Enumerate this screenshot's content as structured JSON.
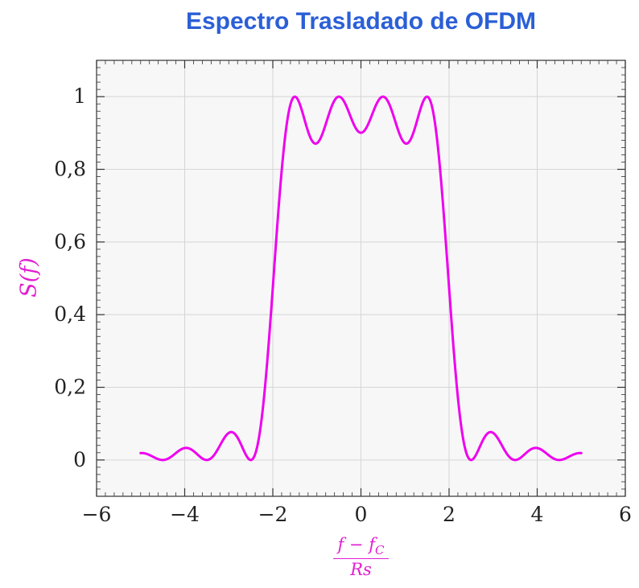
{
  "title": "Espectro Trasladado de OFDM",
  "chart_data": {
    "type": "line",
    "title": "Espectro Trasladado de OFDM",
    "xlabel": "(f − f_C) / Rs",
    "xlabel_parts": {
      "num_main": "f − f",
      "num_sub": "C",
      "den": "Rs"
    },
    "ylabel": "S(f)",
    "xlim": [
      -6,
      6
    ],
    "ylim": [
      -0.1,
      1.1
    ],
    "x_ticks": [
      -6,
      -4,
      -2,
      0,
      2,
      4,
      6
    ],
    "x_tick_labels": [
      "−6",
      "−4",
      "−2",
      "0",
      "2",
      "4",
      "6"
    ],
    "y_ticks": [
      0,
      0.2,
      0.4,
      0.6,
      0.8,
      1
    ],
    "y_tick_labels": [
      "0",
      "0,2",
      "0,4",
      "0,6",
      "0,8",
      "1"
    ],
    "x_minor_step": 0.2,
    "y_minor_step": 0.02,
    "x_major_step": 2,
    "y_major_step": 0.2,
    "grid": true,
    "legend": "none",
    "series": [
      {
        "name": "S(f)",
        "color": "#EE00EE",
        "model": "sum_of_squared_sincs",
        "formula": "S(f) = sum_k sinc^2(f − f_k) over subcarriers f_k",
        "subcarriers": [
          -1.5,
          -0.5,
          0.5,
          1.5
        ],
        "x_range": [
          -5,
          5
        ],
        "samples": 801,
        "key_points": {
          "peaks": [
            [
              -1.5,
              1.0
            ],
            [
              -0.5,
              1.0
            ],
            [
              0.5,
              1.0
            ],
            [
              1.5,
              1.0
            ]
          ],
          "inband_dips": [
            [
              -1,
              0.872
            ],
            [
              0,
              0.901
            ],
            [
              1,
              0.872
            ]
          ],
          "nulls": [
            -4.5,
            -3.5,
            -2.5,
            2.5,
            3.5,
            4.5
          ],
          "sidelobe_peaks": [
            [
              -3,
              0.075
            ],
            [
              3,
              0.075
            ],
            [
              -4,
              0.033
            ],
            [
              4,
              0.033
            ]
          ],
          "endpoints": [
            [
              -5,
              0.019
            ],
            [
              5,
              0.019
            ]
          ]
        }
      }
    ],
    "colors": {
      "curve": "#EE00EE",
      "title": "#2B5FD6",
      "axis_label": "#E020D0",
      "grid": "#D5D5D5",
      "axis": "#333333",
      "text": "#222222",
      "plot_bg": "#F7F7F7"
    }
  }
}
